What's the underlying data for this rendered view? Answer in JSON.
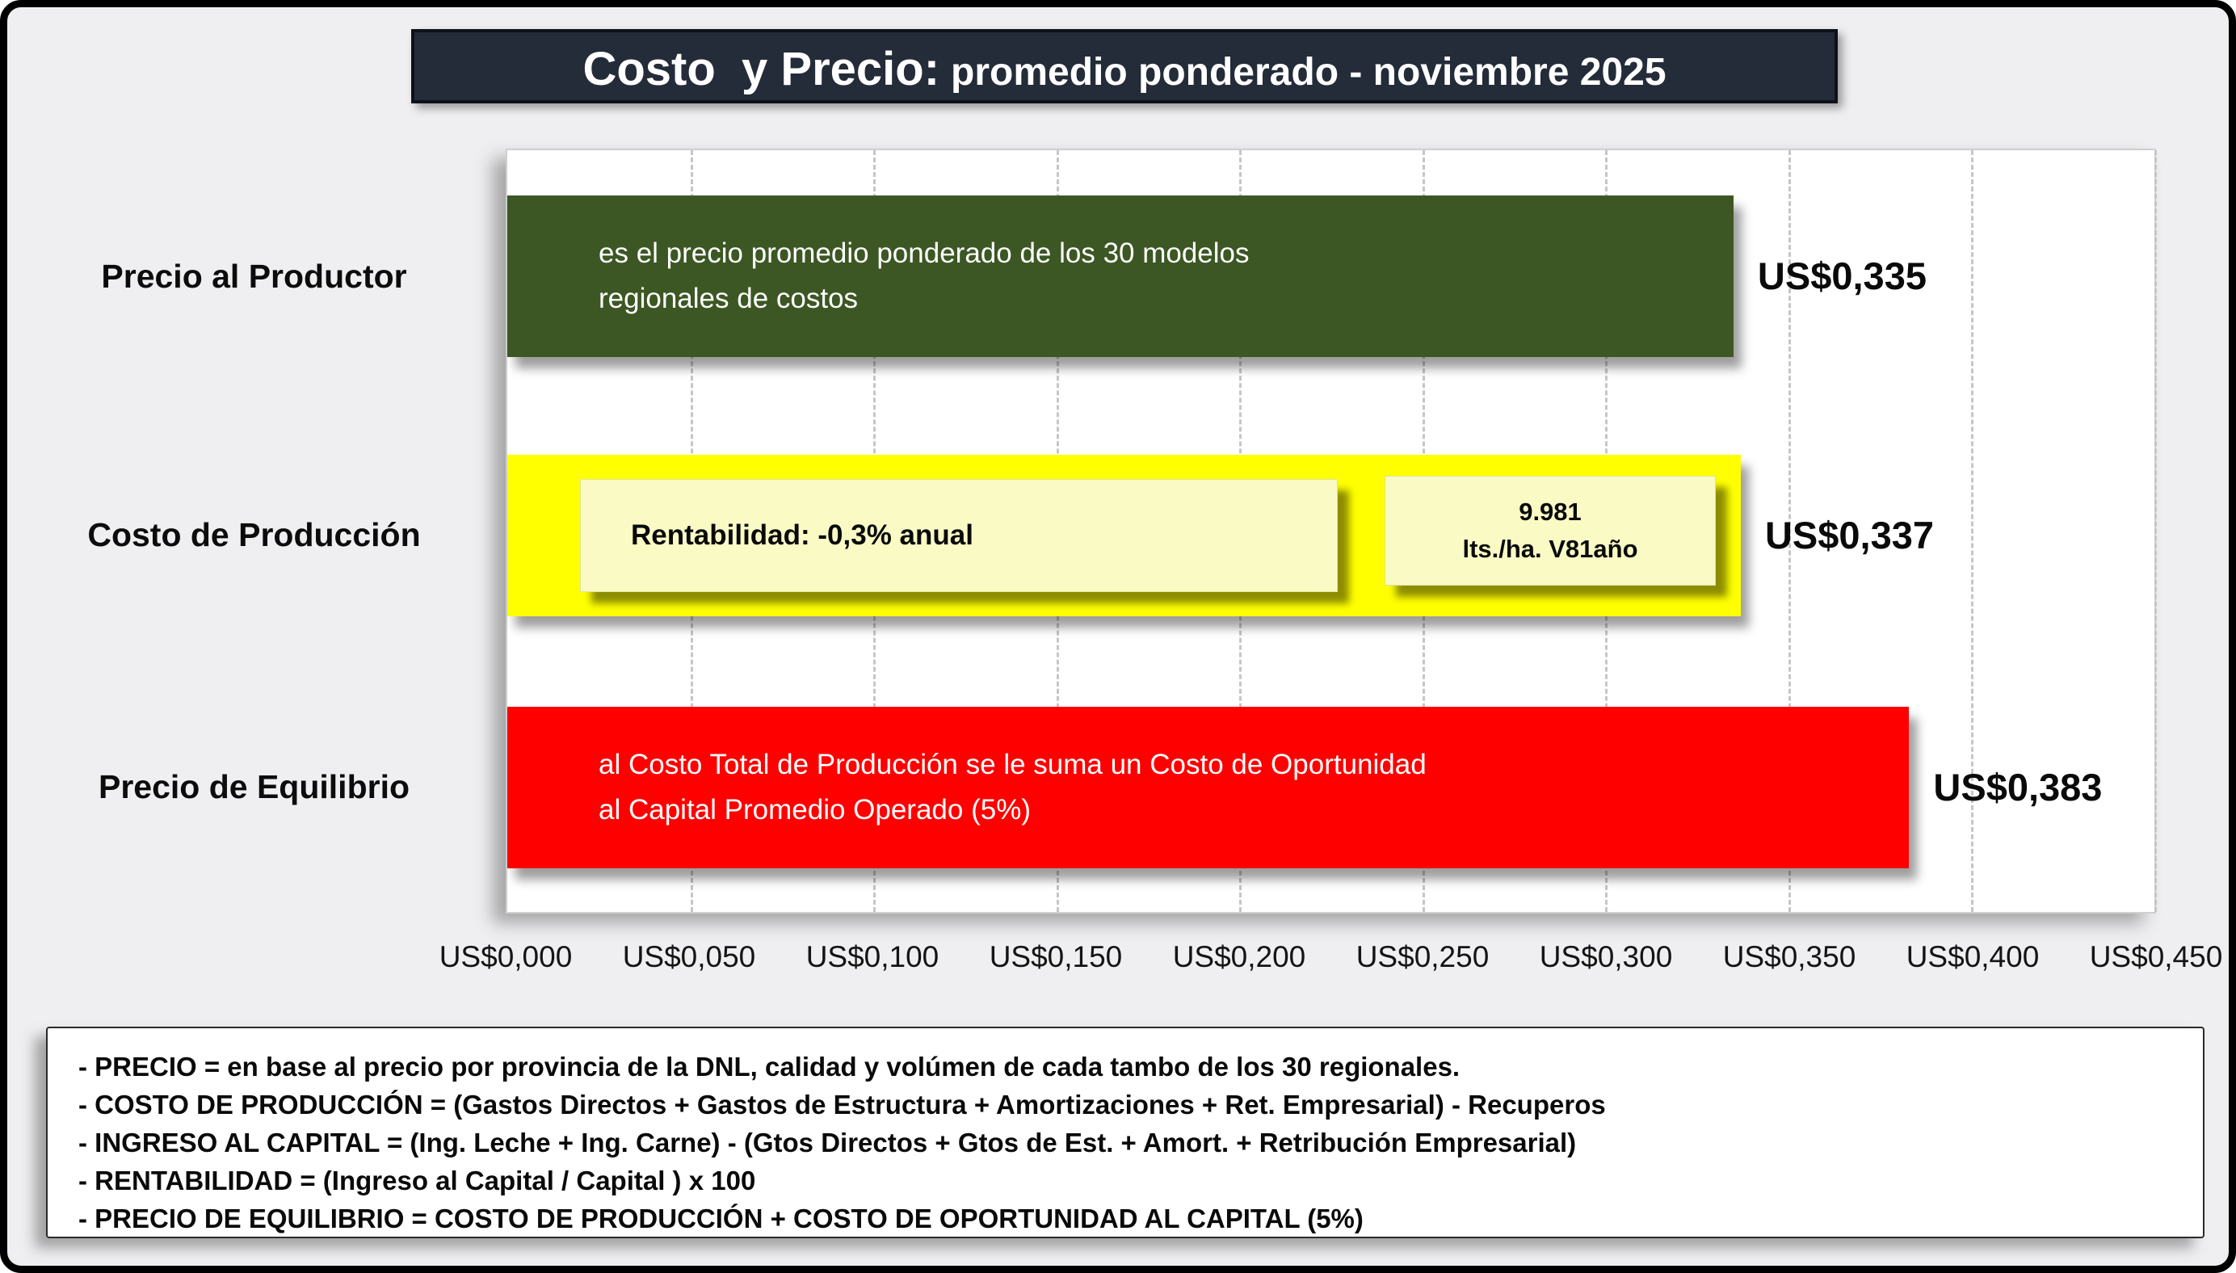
{
  "title": {
    "main": "Costo  y Precio:",
    "sub": "promedio ponderado - noviembre 2025"
  },
  "chart_data": {
    "type": "bar",
    "orientation": "horizontal",
    "title": "Costo  y Precio: promedio ponderado - noviembre 2025",
    "categories": [
      "Precio al Productor",
      "Costo de Producción",
      "Precio de Equilibrio"
    ],
    "values": [
      0.335,
      0.337,
      0.383
    ],
    "value_labels": [
      "US$0,335",
      "US$0,337",
      "US$0,383"
    ],
    "bar_colors": [
      "#3c5723",
      "#ffff00",
      "#fe0000"
    ],
    "xlim": [
      0,
      0.45
    ],
    "tick_step": 0.05,
    "x_tick_labels": [
      "US$0,000",
      "US$0,050",
      "US$0,100",
      "US$0,150",
      "US$0,200",
      "US$0,250",
      "US$0,300",
      "US$0,350",
      "US$0,400",
      "US$0,450"
    ],
    "grid": "vertical-dashed",
    "legend": "none",
    "annotations": {
      "precio_productor": "es el precio promedio ponderado de los 30 modelos\nregionales de costos",
      "rentabilidad": "Rentabilidad: -0,3% anual",
      "productividad": "9.981\nlts./ha. V81año",
      "precio_equilibrio": "al Costo Total de Producción se le suma un Costo de Oportunidad\nal Capital Promedio Operado (5%)"
    }
  },
  "notes": {
    "lines": [
      "- PRECIO = en base al precio por provincia de la DNL, calidad y volúmen de cada tambo de los 30 regionales.",
      "- COSTO DE PRODUCCIÓN = (Gastos Directos + Gastos de Estructura + Amortizaciones + Ret. Empresarial) - Recuperos",
      "- INGRESO AL CAPITAL = (Ing. Leche + Ing. Carne) - (Gtos Directos + Gtos de Est. + Amort. + Retribución Empresarial)",
      "- RENTABILIDAD = (Ingreso al Capital / Capital ) x 100",
      "- PRECIO DE EQUILIBRIO = COSTO DE PRODUCCIÓN + COSTO DE OPORTUNIDAD AL CAPITAL (5%)"
    ]
  }
}
